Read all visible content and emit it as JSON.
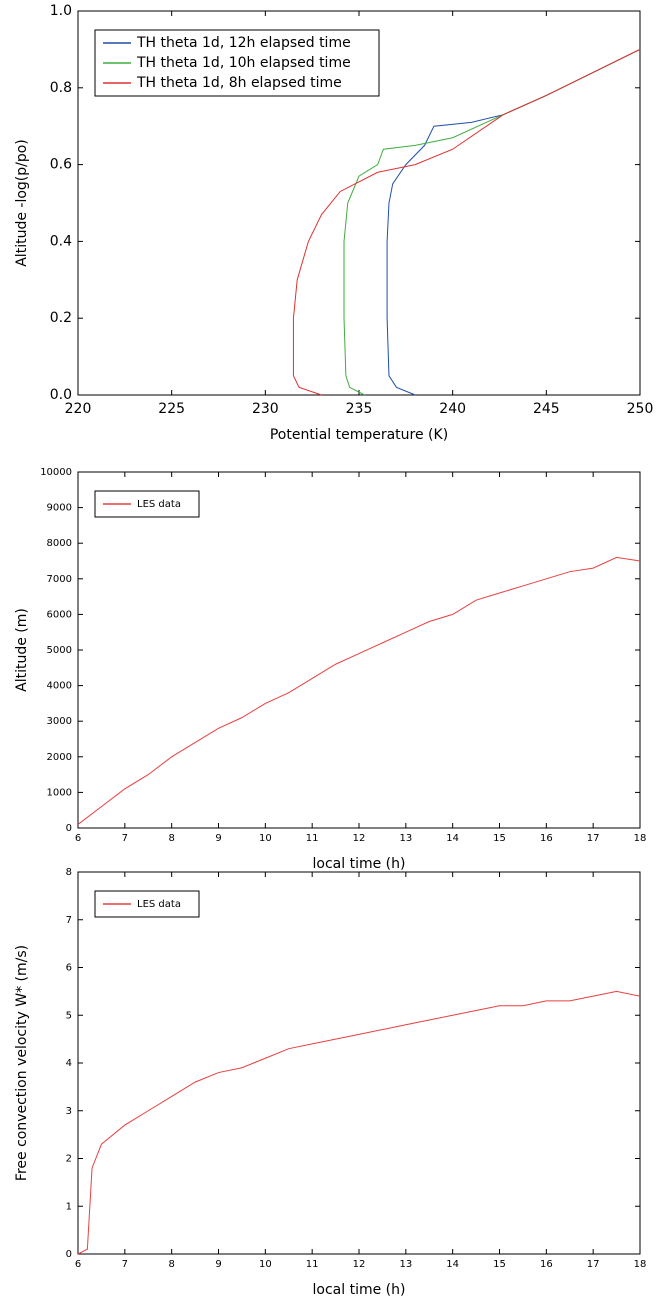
{
  "chart_data": [
    {
      "type": "line",
      "xlabel": "Potential temperature (K)",
      "ylabel": "Altitude -log(p/po)",
      "xlim": [
        220,
        250
      ],
      "ylim": [
        0,
        1.0
      ],
      "xticks": [
        220,
        225,
        230,
        235,
        240,
        245,
        250
      ],
      "yticks": [
        {
          "value": 0,
          "label": "0.0"
        },
        0.2,
        0.4,
        0.6,
        0.8,
        {
          "value": 1,
          "label": "1.0"
        }
      ],
      "grid": false,
      "legend": "upper left",
      "series": [
        {
          "name": "TH theta 1d, 12h elapsed time",
          "color": "#1f4fa8",
          "x": [
            238,
            237,
            236.6,
            236.5,
            236.5,
            236.6,
            236.8,
            237.5,
            238.5,
            239,
            241,
            242.7,
            245,
            247.5,
            250
          ],
          "values": [
            0,
            0.02,
            0.05,
            0.2,
            0.4,
            0.5,
            0.55,
            0.6,
            0.65,
            0.7,
            0.71,
            0.73,
            0.78,
            0.84,
            0.9
          ]
        },
        {
          "name": "TH theta 1d, 10h elapsed time",
          "color": "#3fae3f",
          "x": [
            235.3,
            234.5,
            234.3,
            234.2,
            234.2,
            234.4,
            235,
            236,
            236.3,
            238,
            240,
            242.7,
            245,
            247.5,
            250
          ],
          "values": [
            0,
            0.02,
            0.05,
            0.2,
            0.4,
            0.5,
            0.57,
            0.6,
            0.64,
            0.65,
            0.67,
            0.73,
            0.78,
            0.84,
            0.9
          ]
        },
        {
          "name": "TH theta 1d, 8h elapsed time",
          "color": "#e03030",
          "x": [
            233,
            231.8,
            231.5,
            231.5,
            231.7,
            232.3,
            233,
            234,
            236,
            238,
            240,
            242.7,
            245,
            247.5,
            250
          ],
          "values": [
            0,
            0.02,
            0.05,
            0.2,
            0.3,
            0.4,
            0.47,
            0.53,
            0.58,
            0.6,
            0.64,
            0.73,
            0.78,
            0.84,
            0.9
          ]
        }
      ]
    },
    {
      "type": "line",
      "xlabel": "local time (h)",
      "ylabel": "Altitude (m)",
      "xlim": [
        6,
        18
      ],
      "ylim": [
        0,
        10000
      ],
      "xticks": [
        6,
        7,
        8,
        9,
        10,
        11,
        12,
        13,
        14,
        15,
        16,
        17,
        18
      ],
      "yticks": [
        0,
        1000,
        2000,
        3000,
        4000,
        5000,
        6000,
        7000,
        8000,
        9000,
        10000
      ],
      "grid": false,
      "legend": "upper left",
      "series": [
        {
          "name": "LES data",
          "color": "#e84040",
          "x": [
            6,
            6.5,
            7,
            7.5,
            8,
            8.5,
            9,
            9.5,
            10,
            10.5,
            11,
            11.5,
            12,
            12.5,
            13,
            13.5,
            14,
            14.5,
            15,
            15.5,
            16,
            16.5,
            17,
            17.5,
            18
          ],
          "values": [
            100,
            600,
            1100,
            1500,
            2000,
            2400,
            2800,
            3100,
            3500,
            3800,
            4200,
            4600,
            4900,
            5200,
            5500,
            5800,
            6000,
            6400,
            6600,
            6800,
            7000,
            7200,
            7300,
            7600,
            7500
          ]
        }
      ]
    },
    {
      "type": "line",
      "xlabel": "local time (h)",
      "ylabel": "Free convection velocity W* (m/s)",
      "xlim": [
        6,
        18
      ],
      "ylim": [
        0,
        8
      ],
      "xticks": [
        6,
        7,
        8,
        9,
        10,
        11,
        12,
        13,
        14,
        15,
        16,
        17,
        18
      ],
      "yticks": [
        0,
        1,
        2,
        3,
        4,
        5,
        6,
        7,
        8
      ],
      "grid": false,
      "legend": "upper left",
      "series": [
        {
          "name": "LES data",
          "color": "#e84040",
          "x": [
            6,
            6.2,
            6.3,
            6.5,
            7,
            7.5,
            8,
            8.5,
            9,
            9.5,
            10,
            10.5,
            11,
            11.5,
            12,
            12.5,
            13,
            13.5,
            14,
            14.5,
            15,
            15.5,
            16,
            16.5,
            17,
            17.5,
            18
          ],
          "values": [
            0,
            0.1,
            1.8,
            2.3,
            2.7,
            3.0,
            3.3,
            3.6,
            3.8,
            3.9,
            4.1,
            4.3,
            4.4,
            4.5,
            4.6,
            4.7,
            4.8,
            4.9,
            5.0,
            5.1,
            5.2,
            5.2,
            5.3,
            5.3,
            5.4,
            5.5,
            5.4
          ]
        }
      ]
    }
  ]
}
